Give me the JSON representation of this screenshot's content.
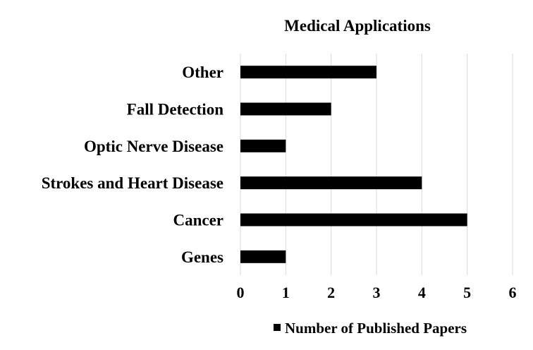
{
  "chart_data": {
    "type": "bar",
    "orientation": "horizontal",
    "title": "Medical Applications",
    "categories": [
      "Genes",
      "Cancer",
      "Strokes and Heart Disease",
      "Optic Nerve Disease",
      "Fall Detection",
      "Other"
    ],
    "series": [
      {
        "name": "Number of Published Papers",
        "values": [
          1,
          5,
          4,
          1,
          2,
          3
        ],
        "color": "#000000"
      }
    ],
    "xlim": [
      0,
      6
    ],
    "xticks": [
      "0",
      "1",
      "2",
      "3",
      "4",
      "5",
      "6"
    ],
    "xlabel": "",
    "ylabel": "",
    "grid": true,
    "legend_position": "bottom"
  }
}
